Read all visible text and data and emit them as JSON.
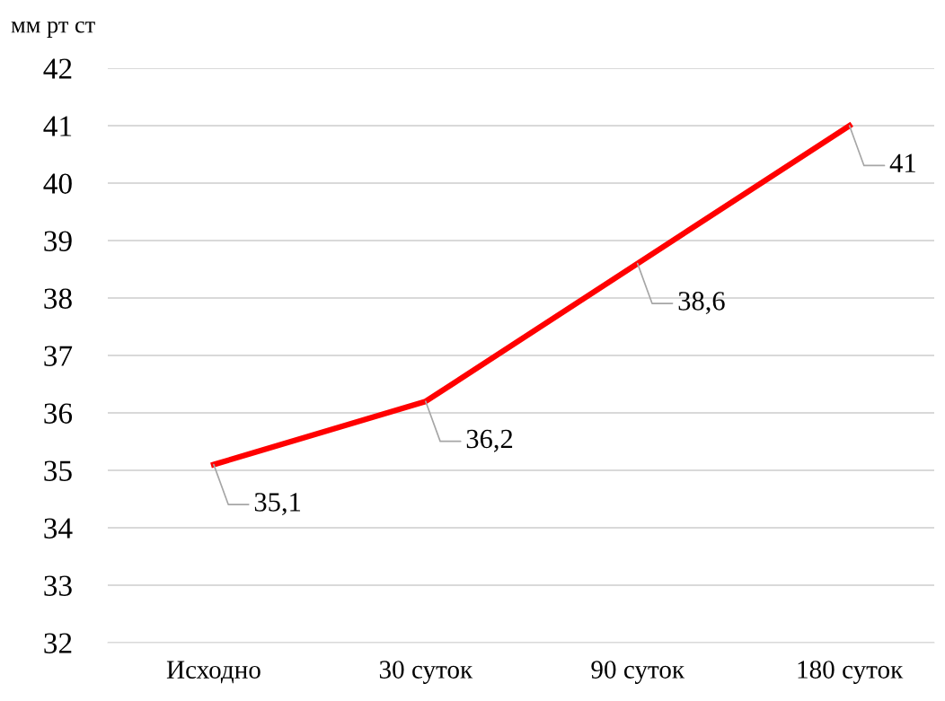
{
  "chart_data": {
    "type": "line",
    "ylabel": "мм рт ст",
    "categories": [
      "Исходно",
      "30 суток",
      "90 суток",
      "180 суток"
    ],
    "series": [
      {
        "color": "#ff0000",
        "values": [
          35.1,
          36.2,
          38.6,
          41
        ],
        "value_labels": [
          "35,1",
          "36,2",
          "38,6",
          "41"
        ]
      }
    ],
    "ylim": [
      32,
      42
    ],
    "yticks": [
      32,
      33,
      34,
      35,
      36,
      37,
      38,
      39,
      40,
      41,
      42
    ],
    "grid": "y",
    "legend": false,
    "marker": "none",
    "line_style": "solid"
  }
}
